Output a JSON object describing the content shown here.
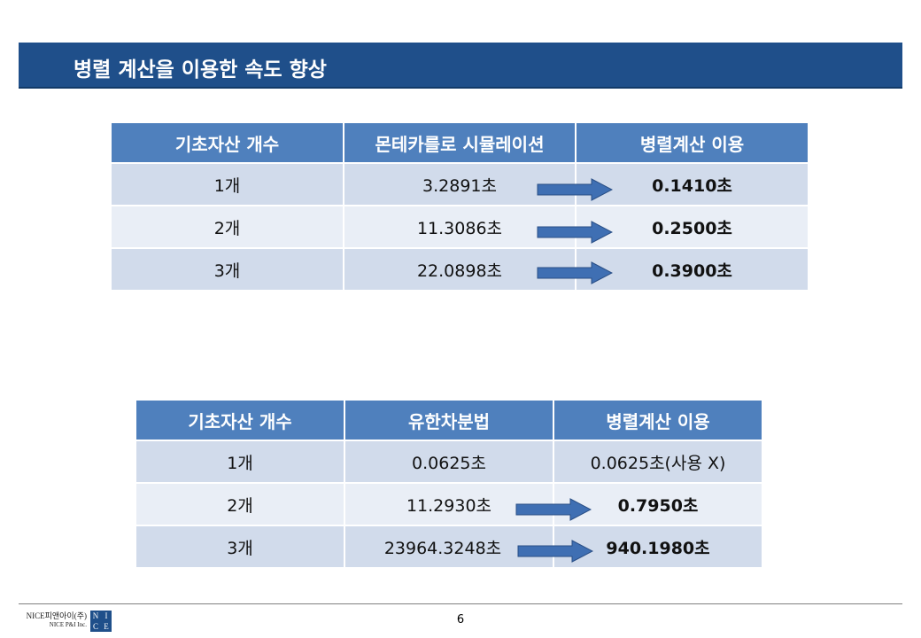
{
  "title": "병렬 계산을 이용한 속도 향상",
  "table1": {
    "headers": [
      "기초자산 개수",
      "몬테카를로 시뮬레이션",
      "병렬계산 이용"
    ],
    "rows": [
      {
        "count": "1개",
        "before": "3.2891초",
        "after": "0.1410초"
      },
      {
        "count": "2개",
        "before": "11.3086초",
        "after": "0.2500초"
      },
      {
        "count": "3개",
        "before": "22.0898초",
        "after": "0.3900초"
      }
    ]
  },
  "table2": {
    "headers": [
      "기초자산 개수",
      "유한차분법",
      "병렬계산 이용"
    ],
    "rows": [
      {
        "count": "1개",
        "before": "0.0625초",
        "after": "0.0625초(사용 X)"
      },
      {
        "count": "2개",
        "before": "11.2930초",
        "after": "0.7950초"
      },
      {
        "count": "3개",
        "before": "23964.3248초",
        "after": "940.1980초"
      }
    ]
  },
  "footer": {
    "logo_line1": "NICE피앤아이(주)",
    "logo_line2": "NICE P&I Inc.",
    "logo_letters": [
      "N",
      "I",
      "C",
      "E"
    ],
    "page_number": "6"
  },
  "colors": {
    "title_bar": "#1f4f8a",
    "header_fill": "#4f80bd",
    "row_odd": "#d1dbeb",
    "row_even": "#e9eef6",
    "arrow_fill": "#3f6fb3"
  },
  "icons": {
    "arrow": "right-arrow-icon"
  }
}
